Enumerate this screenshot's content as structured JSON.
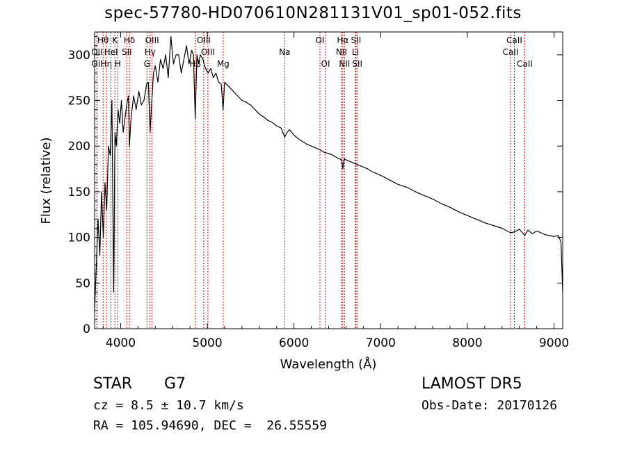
{
  "title": "spec-57780-HD070610N281131V01_sp01-052.fits",
  "footer": {
    "class_label": "STAR",
    "subclass": "G7",
    "survey": "LAMOST DR5",
    "cz": "cz = 8.5 ± 10.7 km/s",
    "obs_date": "Obs-Date: 20170126",
    "coords": "RA = 105.94690, DEC =  26.55559"
  },
  "chart_data": {
    "type": "line",
    "xlabel": "Wavelength (Å)",
    "ylabel": "Flux (relative)",
    "xlim": [
      3700,
      9100
    ],
    "ylim": [
      0,
      325
    ],
    "x_ticks": [
      4000,
      5000,
      6000,
      7000,
      8000,
      9000
    ],
    "y_ticks": [
      0,
      50,
      100,
      150,
      200,
      250,
      300
    ],
    "grid": false,
    "series": [
      {
        "color": "#000000",
        "x": [
          3700,
          3720,
          3740,
          3760,
          3780,
          3800,
          3820,
          3840,
          3860,
          3880,
          3900,
          3920,
          3935,
          3950,
          3970,
          3990,
          4010,
          4030,
          4050,
          4070,
          4090,
          4102,
          4120,
          4150,
          4180,
          4210,
          4240,
          4270,
          4300,
          4320,
          4340,
          4360,
          4380,
          4400,
          4430,
          4460,
          4490,
          4520,
          4550,
          4580,
          4610,
          4640,
          4670,
          4700,
          4730,
          4760,
          4790,
          4820,
          4840,
          4861,
          4880,
          4900,
          4920,
          4950,
          4980,
          5010,
          5040,
          5070,
          5100,
          5130,
          5160,
          5183,
          5200,
          5250,
          5300,
          5350,
          5400,
          5450,
          5500,
          5550,
          5600,
          5650,
          5700,
          5750,
          5800,
          5850,
          5893,
          5920,
          5950,
          6000,
          6050,
          6100,
          6150,
          6200,
          6250,
          6300,
          6350,
          6400,
          6450,
          6500,
          6550,
          6563,
          6580,
          6600,
          6650,
          6700,
          6750,
          6800,
          6850,
          6900,
          6950,
          7000,
          7100,
          7200,
          7300,
          7400,
          7500,
          7600,
          7700,
          7800,
          7900,
          8000,
          8100,
          8200,
          8300,
          8400,
          8498,
          8542,
          8600,
          8662,
          8700,
          8750,
          8800,
          8850,
          8900,
          8950,
          9000,
          9050,
          9080,
          9100
        ],
        "y": [
          20,
          70,
          120,
          80,
          150,
          100,
          160,
          130,
          200,
          190,
          250,
          40,
          215,
          200,
          240,
          225,
          250,
          215,
          230,
          245,
          255,
          200,
          230,
          255,
          240,
          260,
          245,
          250,
          268,
          270,
          215,
          250,
          280,
          288,
          270,
          295,
          285,
          300,
          275,
          320,
          290,
          300,
          300,
          280,
          295,
          310,
          290,
          305,
          300,
          230,
          300,
          290,
          300,
          295,
          285,
          280,
          285,
          275,
          280,
          270,
          268,
          240,
          270,
          265,
          260,
          255,
          250,
          248,
          245,
          240,
          235,
          232,
          228,
          226,
          222,
          220,
          210,
          215,
          218,
          212,
          208,
          205,
          202,
          200,
          198,
          196,
          193,
          192,
          190,
          187,
          185,
          175,
          186,
          185,
          183,
          181,
          179,
          177,
          175,
          172,
          170,
          168,
          163,
          158,
          155,
          150,
          146,
          142,
          137,
          133,
          128,
          124,
          120,
          116,
          113,
          110,
          105,
          106,
          109,
          102,
          108,
          104,
          107,
          105,
          103,
          102,
          101,
          102,
          95,
          40
        ]
      }
    ],
    "lines": [
      {
        "label": "Hθ",
        "x": 3798,
        "row": 0
      },
      {
        "label": "K",
        "x": 3934,
        "row": 0
      },
      {
        "label": "Hδ",
        "x": 4102,
        "row": 0
      },
      {
        "label": "OIII",
        "x": 4363,
        "row": 0
      },
      {
        "label": "OIII",
        "x": 4959,
        "row": 0
      },
      {
        "label": "OI",
        "x": 6300,
        "row": 0
      },
      {
        "label": "Hα",
        "x": 6563,
        "row": 0
      },
      {
        "label": "SII",
        "x": 6716,
        "row": 0
      },
      {
        "label": "CaII",
        "x": 8542,
        "row": 0
      },
      {
        "label": "OII",
        "x": 3727,
        "row": 1
      },
      {
        "label": "HeI",
        "x": 3889,
        "row": 1
      },
      {
        "label": "SII",
        "x": 4072,
        "row": 1
      },
      {
        "label": "Hγ",
        "x": 4340,
        "row": 1
      },
      {
        "label": "OIII",
        "x": 5007,
        "row": 1
      },
      {
        "label": "Na",
        "x": 5893,
        "row": 1
      },
      {
        "label": "NII",
        "x": 6548,
        "row": 1
      },
      {
        "label": "Li",
        "x": 6708,
        "row": 1
      },
      {
        "label": "CaII",
        "x": 8498,
        "row": 1
      },
      {
        "label": "OII",
        "x": 3729,
        "row": 2
      },
      {
        "label": "Hη",
        "x": 3835,
        "row": 2
      },
      {
        "label": "H",
        "x": 3968,
        "row": 2
      },
      {
        "label": "G",
        "x": 4304,
        "row": 2
      },
      {
        "label": "Hβ",
        "x": 4861,
        "row": 2
      },
      {
        "label": "Mg",
        "x": 5183,
        "row": 2
      },
      {
        "label": "OI",
        "x": 6364,
        "row": 2
      },
      {
        "label": "NII",
        "x": 6583,
        "row": 2
      },
      {
        "label": "SII",
        "x": 6731,
        "row": 2
      },
      {
        "label": "CaII",
        "x": 8662,
        "row": 2
      }
    ]
  }
}
